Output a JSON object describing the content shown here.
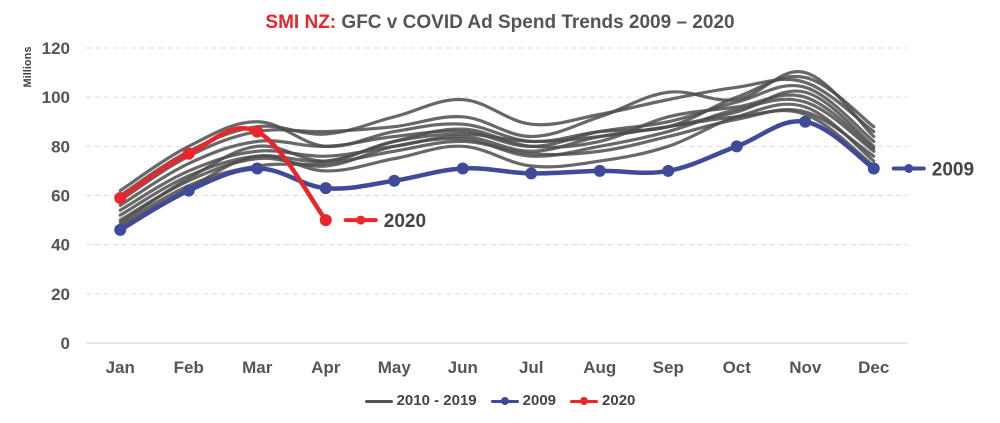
{
  "title": {
    "brand": "SMI NZ:",
    "text": " GFC v COVID Ad Spend Trends 2009 – 2020"
  },
  "chart_data": {
    "type": "line",
    "title": "SMI NZ: GFC v COVID Ad Spend Trends 2009 – 2020",
    "ylabel": "Millions",
    "xlabel": "",
    "ylim": [
      0,
      120
    ],
    "yticks": [
      0,
      20,
      40,
      60,
      80,
      100,
      120
    ],
    "categories": [
      "Jan",
      "Feb",
      "Mar",
      "Apr",
      "May",
      "Jun",
      "Jul",
      "Aug",
      "Sep",
      "Oct",
      "Nov",
      "Dec"
    ],
    "grid": "horizontal dashed",
    "legend_position": "bottom",
    "colors": {
      "background_series": "#4d4d4d",
      "2009": "#3f4a99",
      "2020": "#e8262b"
    },
    "background_series": [
      {
        "values": [
          62,
          80,
          90,
          80,
          86,
          89,
          82,
          86,
          88,
          100,
          108,
          88
        ]
      },
      {
        "values": [
          60,
          78,
          88,
          85,
          92,
          99,
          89,
          93,
          99,
          104,
          106,
          86
        ]
      },
      {
        "values": [
          58,
          76,
          86,
          86,
          88,
          92,
          84,
          92,
          102,
          99,
          110,
          84
        ]
      },
      {
        "values": [
          56,
          73,
          82,
          80,
          84,
          86,
          80,
          86,
          90,
          98,
          104,
          82
        ]
      },
      {
        "values": [
          54,
          70,
          78,
          76,
          80,
          84,
          78,
          84,
          88,
          94,
          102,
          80
        ]
      },
      {
        "values": [
          52,
          68,
          76,
          74,
          82,
          87,
          80,
          82,
          92,
          96,
          100,
          79
        ]
      },
      {
        "values": [
          50,
          66,
          75,
          72,
          80,
          83,
          76,
          80,
          86,
          95,
          98,
          78
        ]
      },
      {
        "values": [
          48,
          64,
          72,
          73,
          78,
          82,
          77,
          78,
          84,
          91,
          94,
          76
        ]
      },
      {
        "values": [
          47,
          63,
          76,
          70,
          75,
          80,
          72,
          74,
          80,
          92,
          96,
          74
        ]
      },
      {
        "values": [
          49,
          67,
          80,
          74,
          82,
          85,
          82,
          84,
          88,
          92,
          93,
          72
        ]
      }
    ],
    "series": [
      {
        "name": "2009",
        "values": [
          46,
          62,
          71,
          63,
          66,
          71,
          69,
          70,
          70,
          80,
          90,
          71
        ]
      },
      {
        "name": "2020",
        "values": [
          59,
          77,
          86,
          50,
          null,
          null,
          null,
          null,
          null,
          null,
          null,
          null
        ]
      }
    ],
    "legend": [
      "2010 - 2019",
      "2009",
      "2020"
    ],
    "annotations": [
      {
        "text": "2009",
        "series": "2009"
      },
      {
        "text": "2020",
        "series": "2020"
      }
    ]
  }
}
